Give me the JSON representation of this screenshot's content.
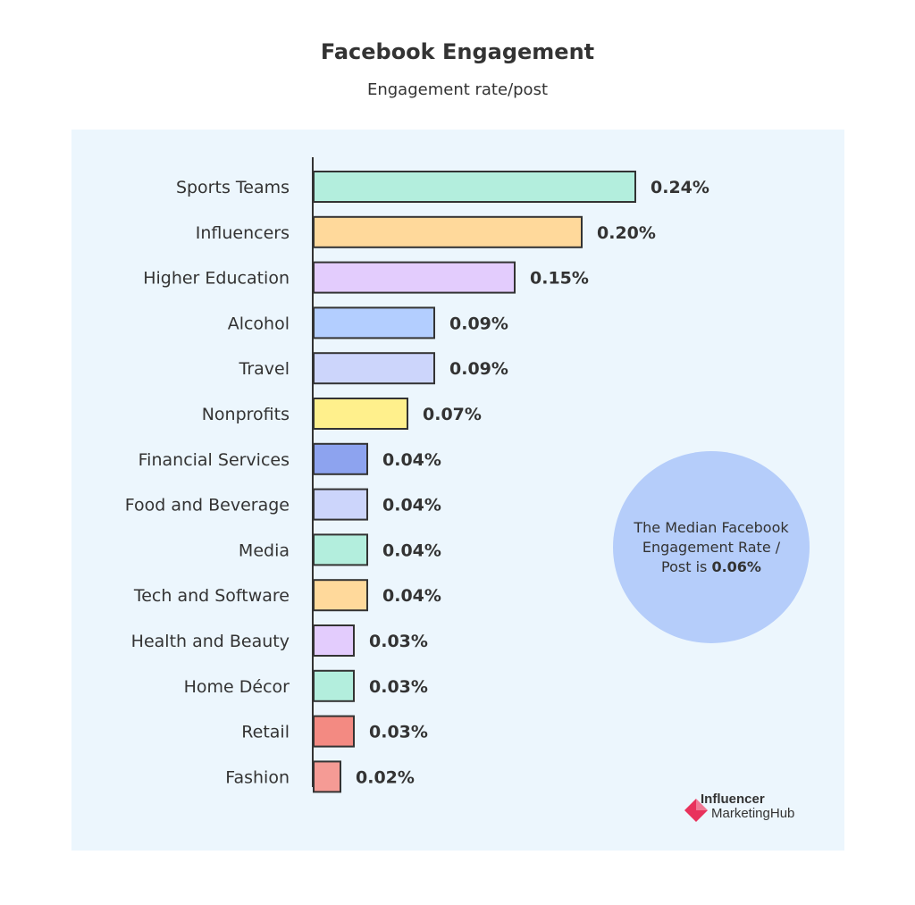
{
  "chart_data": {
    "type": "bar",
    "orientation": "horizontal",
    "title": "Facebook Engagement",
    "subtitle": "Engagement rate/post",
    "categories": [
      "Sports Teams",
      "Influencers",
      "Higher Education",
      "Alcohol",
      "Travel",
      "Nonprofits",
      "Financial Services",
      "Food and Beverage",
      "Media",
      "Tech and Software",
      "Health and Beauty",
      "Home Décor",
      "Retail",
      "Fashion"
    ],
    "values": [
      0.24,
      0.2,
      0.15,
      0.09,
      0.09,
      0.07,
      0.04,
      0.04,
      0.04,
      0.04,
      0.03,
      0.03,
      0.03,
      0.02
    ],
    "value_labels": [
      "0.24%",
      "0.20%",
      "0.15%",
      "0.09%",
      "0.09%",
      "0.07%",
      "0.04%",
      "0.04%",
      "0.04%",
      "0.04%",
      "0.03%",
      "0.03%",
      "0.03%",
      "0.02%"
    ],
    "bar_colors": [
      "#b3eedd",
      "#ffd99b",
      "#e3ccfd",
      "#b3ceff",
      "#ccd5fb",
      "#fff08c",
      "#8da3ef",
      "#ccd5fb",
      "#b3eedd",
      "#ffd99b",
      "#e3ccfd",
      "#b3eedd",
      "#f38a82",
      "#f59b95"
    ],
    "xlabel": "",
    "ylabel": "",
    "grid": false,
    "legend": "none"
  },
  "annotation": {
    "line1": "The Median Facebook",
    "line2": "Engagement Rate /",
    "line3_prefix": "Post is ",
    "line3_value": "0.06%",
    "circle_color": "#b5cdfa"
  },
  "logo": {
    "line1": "Influencer",
    "line2": "MarketingHub",
    "mark_color": "#e8325c"
  },
  "colors": {
    "panel_background": "#ecf6fd",
    "bar_outline": "#333333",
    "axis": "#333333"
  }
}
